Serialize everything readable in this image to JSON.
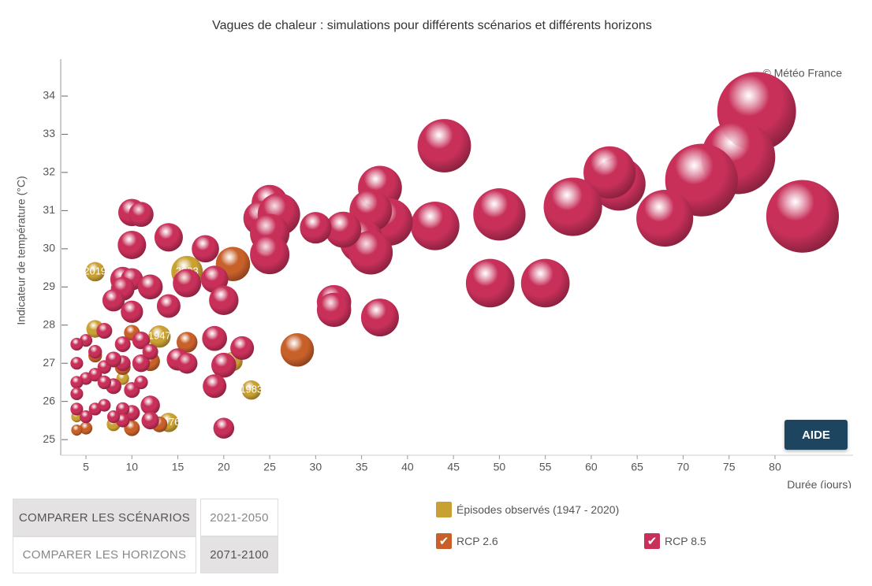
{
  "chart_data": {
    "type": "bubble",
    "title": "Vagues de chaleur : simulations pour différents scénarios et différents horizons",
    "credit": "© Météo France",
    "y_label": "Indicateur de température (°C)",
    "x_label": "Durée (jours)",
    "xlim": [
      2.25,
      88.5
    ],
    "xticks": [
      5,
      10,
      15,
      20,
      25,
      30,
      35,
      40,
      45,
      50,
      55,
      60,
      65,
      70,
      75,
      80
    ],
    "ylim": [
      24.59,
      34.97
    ],
    "yticks": [
      25,
      26,
      27,
      28,
      29,
      30,
      31,
      32,
      33,
      34
    ],
    "series": [
      {
        "name": "Épisodes observés (1947 - 2020)",
        "color": "#c9a032",
        "checked": false,
        "x": [
          6,
          16,
          13,
          23,
          14,
          6,
          21,
          8,
          4,
          9,
          12
        ],
        "y": [
          29.4,
          29.4,
          27.7,
          26.3,
          25.45,
          27.9,
          27.05,
          25.4,
          25.6,
          26.6,
          25.5
        ],
        "z": [
          6,
          16,
          8,
          6,
          6,
          5,
          6,
          3,
          2,
          2.6,
          2.6
        ],
        "labels": [
          "2019",
          "2003",
          "1947",
          "1983",
          "1976",
          null,
          null,
          null,
          null,
          null,
          null
        ]
      },
      {
        "name": "RCP 2.6",
        "color": "#c8602a",
        "checked": true,
        "x": [
          21,
          28,
          16,
          12,
          10,
          10,
          5,
          4,
          9,
          19,
          6,
          13
        ],
        "y": [
          29.6,
          27.35,
          27.55,
          27.05,
          27.8,
          25.3,
          25.3,
          25.25,
          26.9,
          29.1,
          27.2,
          25.4
        ],
        "z": [
          19,
          18,
          7,
          6,
          4,
          4,
          2.6,
          2,
          4,
          6,
          3,
          4
        ]
      },
      {
        "name": "RCP 8.5",
        "color": "#c8305a",
        "checked": true,
        "x": [
          78,
          76,
          72,
          83,
          68,
          63,
          62,
          58,
          50,
          55,
          49,
          43,
          44,
          37,
          38,
          36,
          35,
          36,
          33,
          30,
          37,
          32,
          32,
          25,
          24,
          26,
          25,
          25,
          18,
          14,
          10,
          11,
          10,
          9,
          10,
          9,
          8,
          10,
          12,
          14,
          16,
          19,
          20,
          19,
          22,
          20,
          19,
          15,
          16,
          20,
          12,
          12,
          11,
          11,
          10,
          11,
          9,
          9,
          8,
          10,
          9,
          9,
          7,
          6,
          7,
          5,
          4,
          4,
          5,
          6,
          4,
          4,
          6,
          4,
          5,
          7,
          8,
          12,
          8,
          7
        ],
        "y": [
          33.6,
          32.4,
          31.8,
          30.85,
          30.8,
          31.7,
          32,
          31.1,
          30.9,
          29.1,
          29.1,
          30.6,
          32.7,
          31.6,
          30.7,
          31,
          30.2,
          29.9,
          30.5,
          30.55,
          28.2,
          28.6,
          28.4,
          31.2,
          30.8,
          30.9,
          30.4,
          29.85,
          30,
          30.3,
          30.95,
          30.9,
          30.1,
          29.2,
          29.2,
          28.95,
          28.65,
          28.35,
          29,
          28.5,
          29.1,
          29.2,
          28.65,
          27.65,
          27.4,
          26.95,
          26.4,
          27.1,
          27,
          25.3,
          25.9,
          25.5,
          27.6,
          27,
          26.3,
          26.5,
          27.5,
          27,
          26.4,
          25.7,
          25.8,
          25.5,
          27.85,
          27.3,
          26.9,
          27.6,
          27.5,
          27,
          26.6,
          26.7,
          26.5,
          26.2,
          25.8,
          25.8,
          25.6,
          25.9,
          25.6,
          27.3,
          27.1,
          26.5
        ],
        "z": [
          100,
          88,
          85,
          85,
          52,
          46,
          44,
          55,
          44,
          38,
          38,
          38,
          46,
          31,
          36,
          29,
          31,
          31,
          21,
          16,
          23,
          19,
          19,
          21,
          19,
          29,
          25,
          25,
          12,
          13,
          12,
          10,
          13,
          10,
          8,
          9,
          8,
          8,
          10,
          9,
          13,
          12,
          14,
          10,
          9,
          10,
          9,
          8,
          7,
          7,
          6,
          5,
          5,
          5,
          4,
          3,
          4,
          4,
          4,
          4,
          3,
          3,
          4,
          3,
          3,
          2.6,
          2.6,
          2.6,
          2.6,
          3,
          2.6,
          2.6,
          2.6,
          2.6,
          2.6,
          2.6,
          2.6,
          4,
          4,
          3
        ]
      }
    ],
    "buttons": {
      "compare_scenarios": "COMPARER LES SCÉNARIOS",
      "compare_horizons": "COMPARER LES HORIZONS",
      "horizon_1": "2021-2050",
      "horizon_2": "2071-2100",
      "help": "AIDE"
    }
  }
}
